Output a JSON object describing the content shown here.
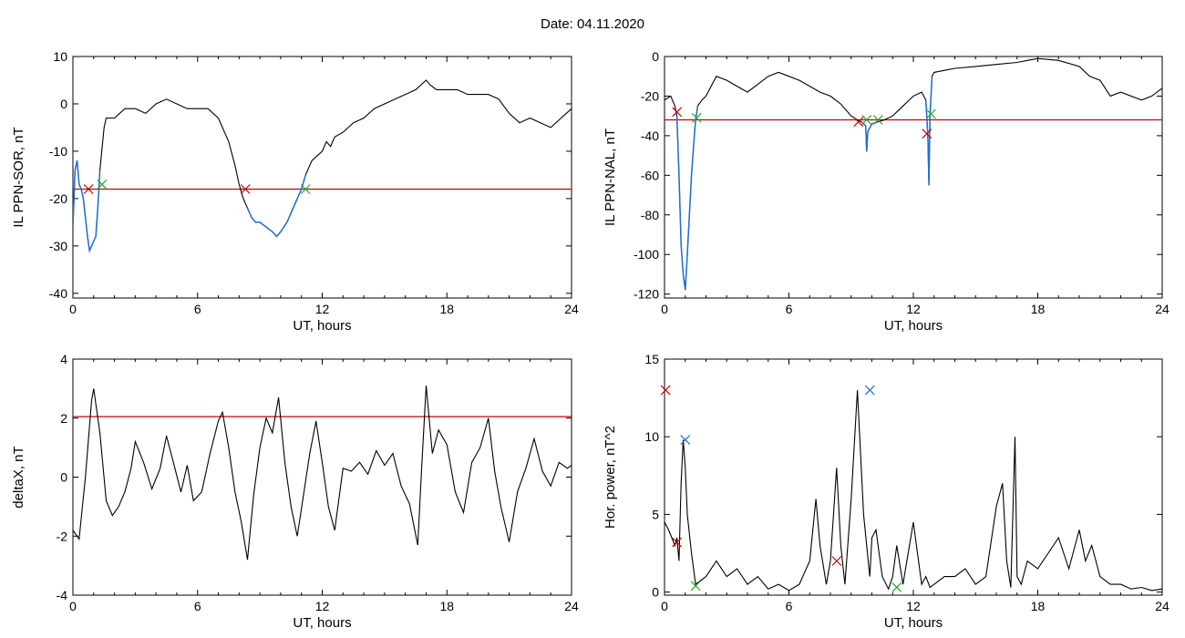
{
  "page": {
    "title": "Date:  04.11.2020"
  },
  "colors": {
    "trace": "#000000",
    "threshold": "#cc0000",
    "highlight": "#1f6fd6",
    "marker_red": "#cc0000",
    "marker_green": "#22aa22",
    "marker_blue": "#1f6fd6"
  },
  "chart_data": [
    {
      "type": "line",
      "title": "",
      "xlabel": "UT, hours",
      "ylabel": "IL PPN-SOR, nT",
      "xlim": [
        0,
        24
      ],
      "ylim": [
        -41,
        10
      ],
      "x_ticks": [
        0,
        6,
        12,
        18,
        24
      ],
      "y_ticks": [
        10,
        0,
        -10,
        -20,
        -30,
        -40
      ],
      "threshold": -18,
      "series": [
        {
          "x": [
            0,
            0.1,
            0.2,
            0.3,
            0.4,
            0.5,
            0.6,
            0.7,
            0.8,
            0.9,
            1.0,
            1.1,
            1.2,
            1.3,
            1.5,
            1.6,
            1.8,
            2.0,
            2.5,
            3.0,
            3.5,
            4.0,
            4.5,
            5.0,
            5.5,
            6.0,
            6.5,
            7.0,
            7.5,
            7.8,
            8.0,
            8.2,
            8.4,
            8.6,
            8.8,
            9.0,
            9.3,
            9.6,
            9.8,
            10.0,
            10.3,
            10.6,
            11.0,
            11.2,
            11.5,
            12.0,
            12.2,
            12.4,
            12.6,
            13.0,
            13.5,
            14.0,
            14.5,
            15.0,
            15.5,
            16.0,
            16.5,
            17.0,
            17.2,
            17.5,
            18.0,
            18.5,
            19.0,
            19.5,
            20.0,
            20.5,
            21.0,
            21.5,
            22.0,
            22.5,
            23.0,
            23.5,
            24.0
          ],
          "y": [
            -26,
            -14,
            -12,
            -17,
            -18,
            -20,
            -24,
            -28,
            -31,
            -30,
            -29,
            -28,
            -22,
            -14,
            -5,
            -3,
            -3,
            -3,
            -1,
            -1,
            -2,
            0,
            1,
            0,
            -1,
            -1,
            -1,
            -3,
            -8,
            -13,
            -17,
            -20,
            -22,
            -24,
            -25,
            -25,
            -26,
            -27,
            -28,
            -27,
            -25,
            -22,
            -18,
            -15,
            -12,
            -10,
            -8,
            -9,
            -7,
            -6,
            -4,
            -3,
            -1,
            0,
            1,
            2,
            3,
            5,
            4,
            3,
            3,
            3,
            2,
            2,
            2,
            1,
            -2,
            -4,
            -3,
            -4,
            -5,
            -3,
            -1
          ]
        }
      ],
      "highlight_ranges": [
        [
          0,
          1.4
        ],
        [
          8.3,
          11.2
        ]
      ],
      "markers": [
        {
          "x": 0.75,
          "y": -18,
          "color": "red"
        },
        {
          "x": 1.4,
          "y": -17,
          "color": "green"
        },
        {
          "x": 8.3,
          "y": -18,
          "color": "red"
        },
        {
          "x": 11.2,
          "y": -18,
          "color": "green"
        }
      ]
    },
    {
      "type": "line",
      "title": "",
      "xlabel": "UT, hours",
      "ylabel": "IL PPN-NAL, nT",
      "xlim": [
        0,
        24
      ],
      "ylim": [
        -122,
        0
      ],
      "x_ticks": [
        0,
        6,
        12,
        18,
        24
      ],
      "y_ticks": [
        0,
        -20,
        -40,
        -60,
        -80,
        -100,
        -120
      ],
      "threshold": -32,
      "series": [
        {
          "x": [
            0,
            0.3,
            0.5,
            0.6,
            0.7,
            0.8,
            0.9,
            1.0,
            1.1,
            1.2,
            1.3,
            1.4,
            1.5,
            1.6,
            1.8,
            2.0,
            2.5,
            3.0,
            3.5,
            4.0,
            4.5,
            5.0,
            5.5,
            6.0,
            6.5,
            7.0,
            7.5,
            8.0,
            8.5,
            9.0,
            9.3,
            9.5,
            9.7,
            9.75,
            9.8,
            10.0,
            10.3,
            10.6,
            11.0,
            11.5,
            12.0,
            12.4,
            12.6,
            12.7,
            12.75,
            12.8,
            12.9,
            13.0,
            13.5,
            14.0,
            15.0,
            16.0,
            17.0,
            17.5,
            18.0,
            19.0,
            20.0,
            20.5,
            21.0,
            21.5,
            22.0,
            23.0,
            23.5,
            24.0
          ],
          "y": [
            -22,
            -20,
            -25,
            -30,
            -60,
            -95,
            -110,
            -118,
            -100,
            -80,
            -60,
            -45,
            -32,
            -25,
            -22,
            -20,
            -10,
            -12,
            -15,
            -18,
            -14,
            -10,
            -8,
            -10,
            -12,
            -15,
            -18,
            -20,
            -24,
            -30,
            -32,
            -33,
            -35,
            -48,
            -38,
            -34,
            -33,
            -32,
            -30,
            -25,
            -20,
            -18,
            -22,
            -40,
            -65,
            -30,
            -10,
            -8,
            -7,
            -6,
            -5,
            -4,
            -3,
            -2,
            -1,
            -2,
            -5,
            -10,
            -12,
            -20,
            -18,
            -22,
            -20,
            -16
          ]
        }
      ],
      "highlight_ranges": [
        [
          0.6,
          1.6
        ],
        [
          9.4,
          10.4
        ],
        [
          12.6,
          12.9
        ]
      ],
      "markers": [
        {
          "x": 0.6,
          "y": -28,
          "color": "red"
        },
        {
          "x": 1.55,
          "y": -31,
          "color": "green"
        },
        {
          "x": 9.35,
          "y": -33,
          "color": "red"
        },
        {
          "x": 9.75,
          "y": -32,
          "color": "green"
        },
        {
          "x": 10.3,
          "y": -32,
          "color": "green"
        },
        {
          "x": 12.65,
          "y": -39,
          "color": "red"
        },
        {
          "x": 12.85,
          "y": -29,
          "color": "green"
        }
      ]
    },
    {
      "type": "line",
      "title": "",
      "xlabel": "UT, hours",
      "ylabel": "deltaX, nT",
      "xlim": [
        0,
        24
      ],
      "ylim": [
        -4,
        4
      ],
      "x_ticks": [
        0,
        6,
        12,
        18,
        24
      ],
      "y_ticks": [
        4,
        2,
        0,
        -2,
        -4
      ],
      "threshold": 2.05,
      "series": [
        {
          "x": [
            0,
            0.3,
            0.6,
            0.9,
            1.0,
            1.3,
            1.6,
            1.9,
            2.2,
            2.5,
            2.8,
            3.0,
            3.4,
            3.8,
            4.2,
            4.5,
            4.8,
            5.2,
            5.5,
            5.8,
            6.2,
            6.6,
            7.0,
            7.2,
            7.5,
            7.8,
            8.1,
            8.4,
            8.7,
            9.0,
            9.3,
            9.6,
            9.9,
            10.2,
            10.5,
            10.8,
            11.1,
            11.4,
            11.7,
            12.0,
            12.3,
            12.6,
            13.0,
            13.4,
            13.8,
            14.2,
            14.6,
            15.0,
            15.4,
            15.8,
            16.2,
            16.6,
            16.8,
            17.0,
            17.3,
            17.6,
            18.0,
            18.4,
            18.8,
            19.2,
            19.6,
            20.0,
            20.3,
            20.6,
            21.0,
            21.4,
            21.8,
            22.2,
            22.6,
            23.0,
            23.4,
            23.8,
            24.0
          ],
          "y": [
            -1.8,
            -2.1,
            0,
            2.6,
            3.0,
            1.5,
            -0.8,
            -1.3,
            -1.0,
            -0.5,
            0.3,
            1.2,
            0.5,
            -0.4,
            0.3,
            1.4,
            0.6,
            -0.5,
            0.4,
            -0.8,
            -0.5,
            0.8,
            1.9,
            2.2,
            1.0,
            -0.5,
            -1.5,
            -2.8,
            -0.6,
            1.0,
            2.0,
            1.5,
            2.7,
            0.5,
            -1.0,
            -2.0,
            -0.6,
            0.8,
            1.9,
            0.5,
            -1.0,
            -1.8,
            0.3,
            0.2,
            0.5,
            0.1,
            0.9,
            0.4,
            0.8,
            -0.3,
            -0.9,
            -2.3,
            0.5,
            3.1,
            0.8,
            1.6,
            1.1,
            -0.5,
            -1.2,
            0.5,
            1.0,
            2.0,
            0.2,
            -1.0,
            -2.2,
            -0.5,
            0.3,
            1.3,
            0.2,
            -0.3,
            0.5,
            0.3,
            0.4
          ]
        }
      ],
      "highlight_ranges": [],
      "markers": []
    },
    {
      "type": "line",
      "title": "",
      "xlabel": "UT, hours",
      "ylabel": "Hor. power, nT^2",
      "xlim": [
        0,
        24
      ],
      "ylim": [
        -0.2,
        15
      ],
      "x_ticks": [
        0,
        6,
        12,
        18,
        24
      ],
      "y_ticks": [
        15,
        10,
        5,
        0
      ],
      "threshold": null,
      "series": [
        {
          "x": [
            0,
            0.2,
            0.5,
            0.6,
            0.7,
            0.8,
            0.9,
            1.0,
            1.1,
            1.3,
            1.5,
            1.8,
            2.0,
            2.5,
            3.0,
            3.5,
            4.0,
            4.5,
            5.0,
            5.5,
            6.0,
            6.5,
            7.0,
            7.3,
            7.5,
            7.8,
            8.0,
            8.3,
            8.5,
            8.7,
            9.0,
            9.3,
            9.6,
            9.9,
            10.0,
            10.2,
            10.5,
            10.8,
            11.0,
            11.2,
            11.5,
            12.0,
            12.4,
            12.6,
            12.8,
            13.0,
            13.5,
            14.0,
            14.5,
            15.0,
            15.5,
            16.0,
            16.3,
            16.5,
            16.7,
            16.9,
            17.0,
            17.2,
            17.5,
            18.0,
            18.5,
            19.0,
            19.5,
            20.0,
            20.3,
            20.6,
            21.0,
            21.5,
            22.0,
            22.5,
            23.0,
            23.5,
            24.0
          ],
          "y": [
            4.5,
            4,
            3,
            3.5,
            2,
            7,
            9.8,
            8,
            5,
            2.5,
            0.5,
            0.8,
            1,
            2,
            1,
            1.5,
            0.5,
            1,
            0.2,
            0.5,
            0.1,
            0.5,
            2,
            6,
            3,
            0.5,
            2,
            8,
            3,
            0.5,
            6,
            13,
            5,
            1,
            3.5,
            4,
            1,
            0.2,
            1,
            3,
            0.5,
            4.5,
            0.5,
            1,
            0.3,
            0.5,
            1,
            1,
            1.5,
            0.5,
            1,
            5.5,
            7,
            2,
            0.3,
            10,
            1,
            0.5,
            2,
            1.5,
            2.5,
            3.5,
            1.5,
            4,
            2,
            3,
            1,
            0.5,
            0.5,
            0.2,
            0.3,
            0.1,
            0.2
          ]
        }
      ],
      "highlight_ranges": [],
      "markers": [
        {
          "x": 0.05,
          "y": 13,
          "color": "red"
        },
        {
          "x": 1.0,
          "y": 9.8,
          "color": "blue"
        },
        {
          "x": 0.6,
          "y": 3.2,
          "color": "red"
        },
        {
          "x": 1.5,
          "y": 0.4,
          "color": "green"
        },
        {
          "x": 8.3,
          "y": 2.0,
          "color": "red"
        },
        {
          "x": 9.9,
          "y": 13,
          "color": "blue"
        },
        {
          "x": 11.2,
          "y": 0.3,
          "color": "green"
        }
      ]
    }
  ]
}
